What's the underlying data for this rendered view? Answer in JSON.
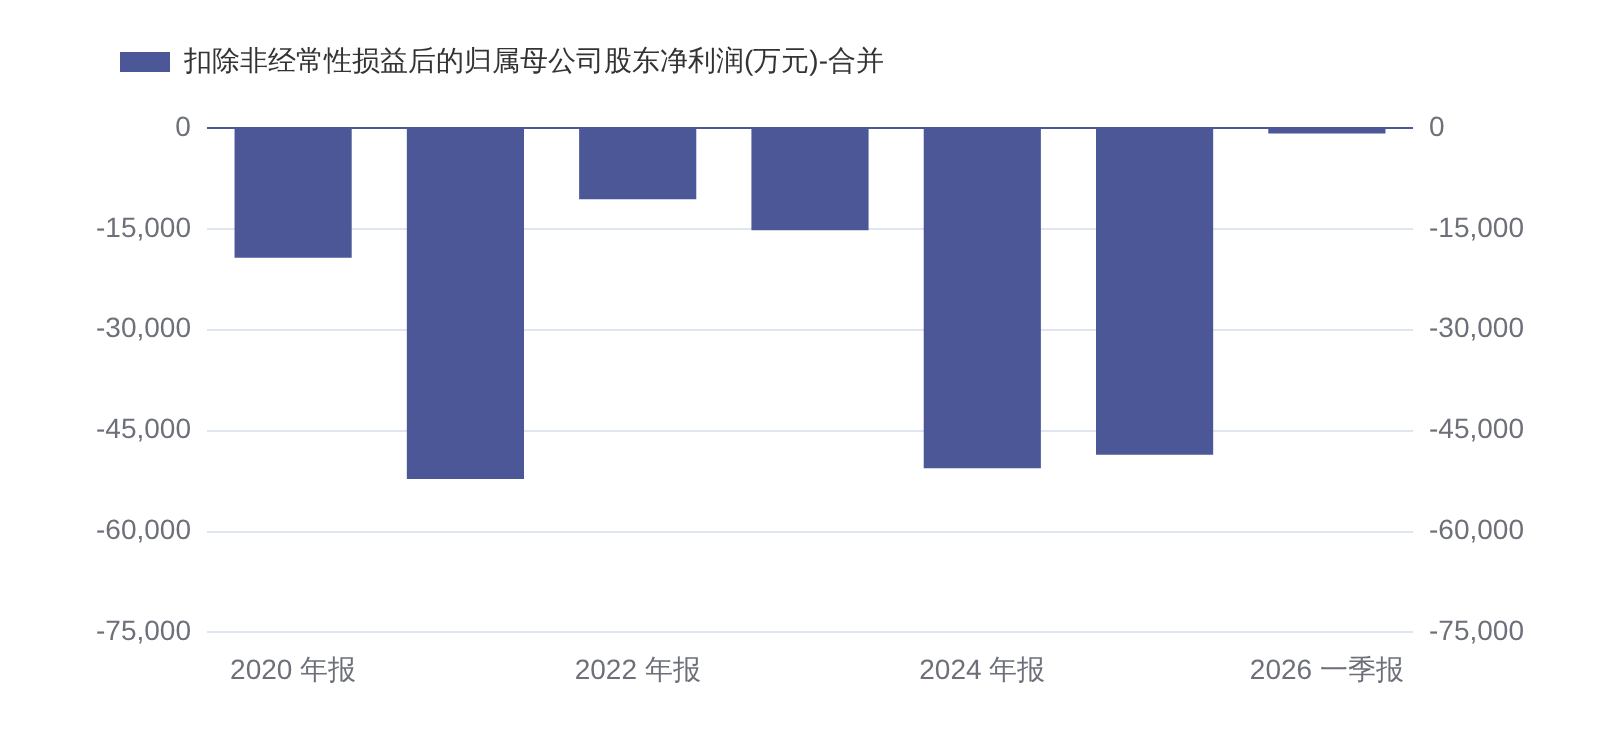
{
  "chart_data": {
    "type": "bar",
    "categories": [
      "2020 年报",
      null,
      "2022 年报",
      null,
      "2024 年报",
      null,
      "2026 一季报"
    ],
    "series": [
      {
        "name": "扣除非经常性损益后的归属母公司股东净利润(万元)-合并",
        "color": "#4b5796",
        "values": [
          -19300,
          -52200,
          -10600,
          -15200,
          -50600,
          -48600,
          -800
        ]
      }
    ],
    "ylim": [
      -75000,
      0
    ],
    "yticks": [
      0,
      {
        "value": -15000,
        "label": "-15,000"
      },
      {
        "value": -30000,
        "label": "-30,000"
      },
      {
        "value": -45000,
        "label": "-45,000"
      },
      {
        "value": -60000,
        "label": "-60,000"
      },
      {
        "value": -75000,
        "label": "-75,000"
      }
    ],
    "y2lim": [
      -75000,
      0
    ],
    "y2ticks": [
      0,
      {
        "value": -15000,
        "label": "-15,000"
      },
      {
        "value": -30000,
        "label": "-30,000"
      },
      {
        "value": -45000,
        "label": "-45,000"
      },
      {
        "value": -60000,
        "label": "-60,000"
      },
      {
        "value": -75000,
        "label": "-75,000"
      }
    ],
    "grid": "y",
    "legend": "top left"
  }
}
